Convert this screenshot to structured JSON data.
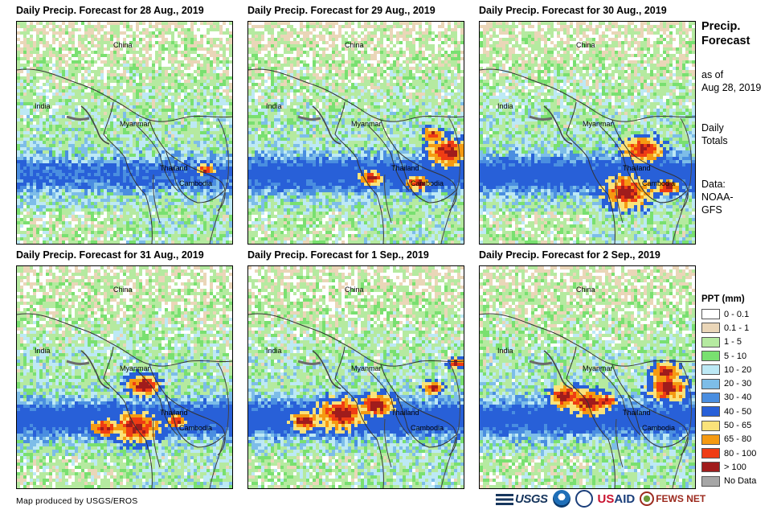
{
  "panels": [
    {
      "title": "Daily Precip. Forecast for 28 Aug., 2019",
      "intensity": 0.2,
      "hotspots": [
        [
          0.87,
          0.66,
          0.5
        ]
      ]
    },
    {
      "title": "Daily Precip. Forecast for 29 Aug., 2019",
      "intensity": 0.55,
      "hotspots": [
        [
          0.92,
          0.58,
          1.3
        ],
        [
          0.56,
          0.7,
          0.7
        ],
        [
          0.78,
          0.72,
          0.7
        ],
        [
          0.85,
          0.5,
          0.6
        ]
      ]
    },
    {
      "title": "Daily Precip. Forecast for 30 Aug., 2019",
      "intensity": 0.6,
      "hotspots": [
        [
          0.68,
          0.76,
          1.5
        ],
        [
          0.75,
          0.57,
          1.2
        ],
        [
          0.87,
          0.74,
          0.7
        ]
      ]
    },
    {
      "title": "Daily Precip. Forecast for 31 Aug., 2019",
      "intensity": 0.6,
      "hotspots": [
        [
          0.55,
          0.72,
          1.4
        ],
        [
          0.58,
          0.53,
          1.0
        ],
        [
          0.4,
          0.72,
          0.8
        ],
        [
          0.73,
          0.69,
          0.6
        ]
      ]
    },
    {
      "title": "Daily Precip. Forecast for 1 Sep., 2019",
      "intensity": 0.65,
      "hotspots": [
        [
          0.42,
          0.66,
          1.5
        ],
        [
          0.59,
          0.62,
          1.1
        ],
        [
          0.25,
          0.69,
          0.9
        ],
        [
          0.85,
          0.54,
          0.6
        ],
        [
          0.96,
          0.43,
          0.5
        ]
      ]
    },
    {
      "title": "Daily Precip. Forecast for 2 Sep., 2019",
      "intensity": 0.55,
      "hotspots": [
        [
          0.39,
          0.58,
          1.0
        ],
        [
          0.5,
          0.61,
          1.2
        ],
        [
          0.87,
          0.54,
          1.2
        ],
        [
          0.86,
          0.47,
          0.9
        ],
        [
          0.58,
          0.6,
          0.6
        ]
      ]
    }
  ],
  "map_labels": {
    "china": "China",
    "india": "India",
    "myanmar": "Myanmar",
    "thailand": "Thailand",
    "cambodia": "Cambodia"
  },
  "sidebar": {
    "title_line1": "Precip.",
    "title_line2": "Forecast",
    "asof_line1": "as of",
    "asof_line2": "Aug 28, 2019",
    "totals_line1": "Daily",
    "totals_line2": "Totals",
    "data_line1": "Data:",
    "data_line2": "NOAA-",
    "data_line3": "GFS"
  },
  "legend": {
    "title": "PPT (mm)",
    "items": [
      {
        "label": "0 - 0.1",
        "color": "#ffffff"
      },
      {
        "label": "0.1 - 1",
        "color": "#ead6b8"
      },
      {
        "label": "1 - 5",
        "color": "#b5eaa0"
      },
      {
        "label": "5 - 10",
        "color": "#79e070"
      },
      {
        "label": "10 - 20",
        "color": "#bde9f5"
      },
      {
        "label": "20 - 30",
        "color": "#7dbde8"
      },
      {
        "label": "30 - 40",
        "color": "#4a8ee0"
      },
      {
        "label": "40 - 50",
        "color": "#2860d8"
      },
      {
        "label": "50 - 65",
        "color": "#fae27a"
      },
      {
        "label": "65 - 80",
        "color": "#f59a12"
      },
      {
        "label": "80 - 100",
        "color": "#ef3c14"
      },
      {
        "label": "> 100",
        "color": "#a01c1c"
      },
      {
        "label": "No Data",
        "color": "#a6a6a6"
      }
    ]
  },
  "credit": "Map produced by USGS/EROS",
  "logos": {
    "usgs": "USGS",
    "usaid_us": "US",
    "usaid_aid": "AID",
    "fews": "FEWS NET"
  }
}
